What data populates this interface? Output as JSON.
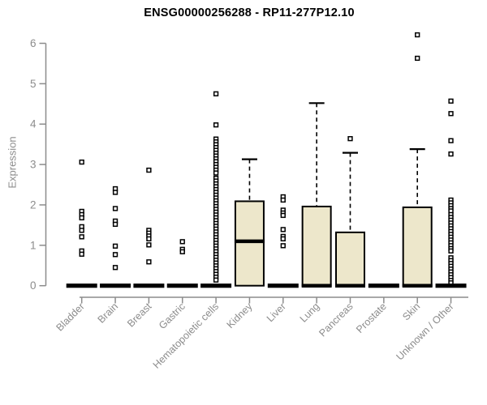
{
  "chart_data": {
    "type": "boxplot",
    "title": "ENSG00000256288 - RP11-277P12.10",
    "ylabel": "Expression",
    "xlabel": "",
    "yticks": [
      0,
      1,
      2,
      3,
      4,
      5,
      6
    ],
    "ylim": [
      0,
      6.35
    ],
    "grid": false,
    "legend": "none",
    "categories": [
      "Bladder",
      "Brain",
      "Breast",
      "Gastric",
      "Hematopoietic cells",
      "Kidney",
      "Liver",
      "Lung",
      "Pancreas",
      "Prostate",
      "Skin",
      "Unknown / Other"
    ],
    "boxes": [
      {
        "category": "Bladder",
        "q1": 0,
        "median": 0,
        "q3": 0,
        "whisker_low": 0,
        "whisker_high": 0,
        "outliers": [
          3.06,
          1.84,
          1.76,
          1.68,
          1.46,
          1.37,
          1.21,
          0.86,
          0.78
        ]
      },
      {
        "category": "Brain",
        "q1": 0,
        "median": 0,
        "q3": 0,
        "whisker_low": 0,
        "whisker_high": 0,
        "outliers": [
          2.4,
          2.31,
          1.91,
          1.6,
          1.52,
          0.98,
          0.77,
          0.45
        ]
      },
      {
        "category": "Breast",
        "q1": 0,
        "median": 0,
        "q3": 0,
        "whisker_low": 0,
        "whisker_high": 0,
        "outliers": [
          2.86,
          1.37,
          1.3,
          1.23,
          1.16,
          1.01,
          0.59
        ]
      },
      {
        "category": "Gastric",
        "q1": 0,
        "median": 0,
        "q3": 0,
        "whisker_low": 0,
        "whisker_high": 0,
        "outliers": [
          1.09,
          0.9,
          0.84
        ]
      },
      {
        "category": "Hematopoietic cells",
        "q1": 0,
        "median": 0,
        "q3": 0,
        "whisker_low": 0,
        "whisker_high": 0,
        "outliers": [
          4.75,
          3.98,
          3.63,
          3.56,
          3.49,
          3.42,
          3.35,
          3.28,
          3.21,
          3.14,
          3.07,
          3.0,
          2.93,
          2.86,
          2.79,
          2.66,
          2.59,
          2.52,
          2.45,
          2.38,
          2.31,
          2.24,
          2.17,
          2.1,
          2.03,
          1.96,
          1.89,
          1.82,
          1.75,
          1.68,
          1.61,
          1.54,
          1.47,
          1.4,
          1.33,
          1.26,
          1.19,
          1.12,
          1.05,
          0.98,
          0.91,
          0.84,
          0.77,
          0.7,
          0.63,
          0.56,
          0.49,
          0.42,
          0.35,
          0.28,
          0.21,
          0.14
        ]
      },
      {
        "category": "Kidney",
        "q1": 0,
        "median": 1.1,
        "q3": 2.09,
        "whisker_low": 0,
        "whisker_high": 3.13,
        "outliers": []
      },
      {
        "category": "Liver",
        "q1": 0,
        "median": 0,
        "q3": 0,
        "whisker_low": 0,
        "whisker_high": 0,
        "outliers": [
          2.2,
          2.12,
          1.87,
          1.8,
          1.74,
          1.39,
          1.22,
          1.16,
          0.99
        ]
      },
      {
        "category": "Lung",
        "q1": 0,
        "median": 0,
        "q3": 1.96,
        "whisker_low": 0,
        "whisker_high": 4.52,
        "outliers": []
      },
      {
        "category": "Pancreas",
        "q1": 0,
        "median": 0,
        "q3": 1.32,
        "whisker_low": 0,
        "whisker_high": 3.29,
        "outliers": [
          3.64
        ]
      },
      {
        "category": "Prostate",
        "q1": 0,
        "median": 0,
        "q3": 0,
        "whisker_low": 0,
        "whisker_high": 0,
        "outliers": []
      },
      {
        "category": "Skin",
        "q1": 0,
        "median": 0,
        "q3": 1.94,
        "whisker_low": 0,
        "whisker_high": 3.38,
        "outliers": [
          6.21,
          5.63
        ]
      },
      {
        "category": "Unknown / Other",
        "q1": 0,
        "median": 0,
        "q3": 0,
        "whisker_low": 0,
        "whisker_high": 0,
        "outliers": [
          4.57,
          4.26,
          3.59,
          3.26,
          2.12,
          2.05,
          1.98,
          1.91,
          1.85,
          1.76,
          1.69,
          1.62,
          1.55,
          1.48,
          1.41,
          1.34,
          1.27,
          1.2,
          1.13,
          1.06,
          0.99,
          0.92,
          0.86,
          0.69,
          0.62,
          0.55,
          0.48,
          0.41,
          0.34,
          0.27,
          0.2,
          0.13,
          0.07
        ]
      }
    ],
    "colors": {
      "box_fill": "#EDE7CB",
      "box_stroke": "#000000",
      "median": "#000000",
      "whisker": "#000000",
      "point_stroke": "#000000",
      "point_fill": "#FFFFFF",
      "axis": "#8C8C8C",
      "tick_label": "#8C8C8C",
      "title": "#000000"
    }
  }
}
